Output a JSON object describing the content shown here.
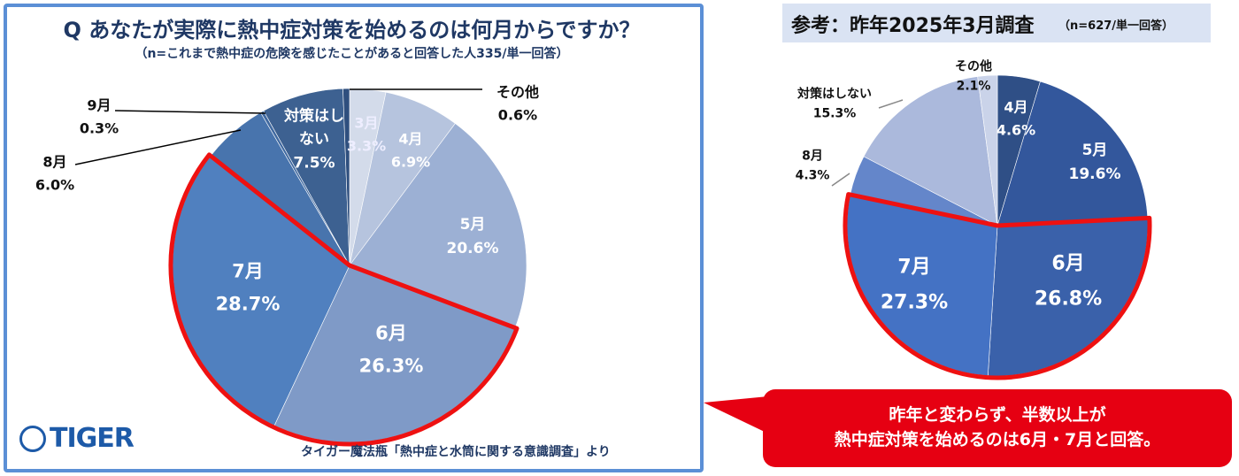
{
  "left": {
    "title": "Q あなたが実際に熱中症対策を始めるのは何月からですか？",
    "subtitle": "（n=これまで熱中症の危険を感じたことがあると回答した人335/単一回答）",
    "source": "タイガー魔法瓶「熱中症と水筒に関する意識調査」より",
    "logo": "TIGER"
  },
  "right": {
    "title": "参考：昨年2025年3月調査",
    "note": "（n=627/単一回答）"
  },
  "callout": {
    "line1": "昨年と変わらず、半数以上が",
    "line2": "熱中症対策を始めるのは6月・7月と回答。"
  },
  "chart_data": [
    {
      "type": "pie",
      "title": "Q あなたが実際に熱中症対策を始めるのは何月からですか？",
      "start": "top",
      "direction": "clockwise",
      "highlight": [
        "6月",
        "7月"
      ],
      "slices": [
        {
          "label": "3月",
          "value": 3.3,
          "pct": "3.3%",
          "color": "#d3dbea"
        },
        {
          "label": "4月",
          "value": 6.9,
          "pct": "6.9%",
          "color": "#b6c4de"
        },
        {
          "label": "5月",
          "value": 20.6,
          "pct": "20.6%",
          "color": "#9cb0d4"
        },
        {
          "label": "6月",
          "value": 26.3,
          "pct": "26.3%",
          "color": "#7f9ac7"
        },
        {
          "label": "7月",
          "value": 28.7,
          "pct": "28.7%",
          "color": "#5080bf"
        },
        {
          "label": "8月",
          "value": 6.0,
          "pct": "6.0%",
          "color": "#4874ad"
        },
        {
          "label": "9月",
          "value": 0.3,
          "pct": "0.3%",
          "color": "#4069a0"
        },
        {
          "label": "対策はしない",
          "value": 7.5,
          "pct": "7.5%",
          "color": "#3d6191"
        },
        {
          "label": "その他",
          "value": 0.6,
          "pct": "0.6%",
          "color": "#2f4f7e"
        }
      ]
    },
    {
      "type": "pie",
      "title": "参考：昨年2025年3月調査",
      "start": "top",
      "direction": "clockwise",
      "highlight": [
        "6月",
        "7月"
      ],
      "slices": [
        {
          "label": "4月",
          "value": 4.6,
          "pct": "4.6%",
          "color": "#2f4f86"
        },
        {
          "label": "5月",
          "value": 19.6,
          "pct": "19.6%",
          "color": "#33579c"
        },
        {
          "label": "6月",
          "value": 26.8,
          "pct": "26.8%",
          "color": "#3a61aa"
        },
        {
          "label": "7月",
          "value": 27.3,
          "pct": "27.3%",
          "color": "#4472c4"
        },
        {
          "label": "8月",
          "value": 4.3,
          "pct": "4.3%",
          "color": "#6486ca"
        },
        {
          "label": "対策はしない",
          "value": 15.3,
          "pct": "15.3%",
          "color": "#abb9dc"
        },
        {
          "label": "その他",
          "value": 2.1,
          "pct": "2.1%",
          "color": "#cad3e9"
        }
      ]
    }
  ]
}
